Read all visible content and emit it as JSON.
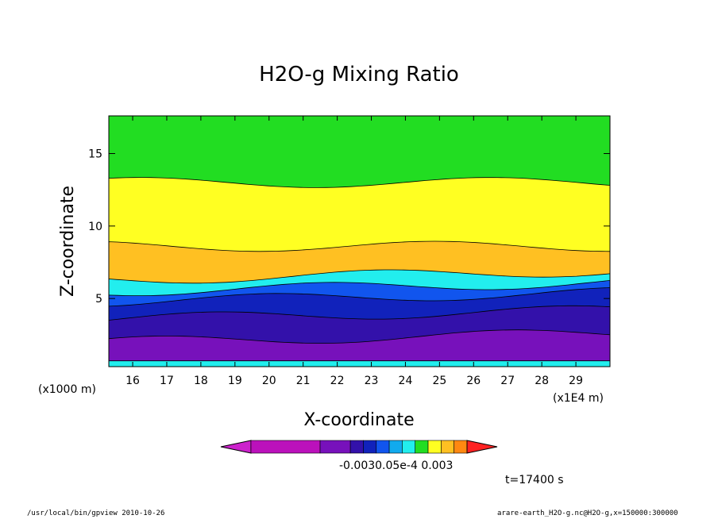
{
  "chart_data": {
    "type": "heatmap",
    "title": "H2O-g Mixing Ratio",
    "xlabel": "X-coordinate",
    "ylabel": "Z-coordinate",
    "x_unit_left": "(x1000 m)",
    "x_unit_right": "(x1E4 m)",
    "x_ticks": [
      "16",
      "17",
      "18",
      "19",
      "20",
      "21",
      "22",
      "23",
      "24",
      "25",
      "26",
      "27",
      "28",
      "29"
    ],
    "y_ticks": [
      "5",
      "10",
      "15"
    ],
    "xlim": [
      15.3,
      30.0
    ],
    "ylim": [
      0.3,
      17.6
    ],
    "layers": [
      {
        "name": "green-top",
        "color": "#22dd22",
        "z_top": 17.6
      },
      {
        "name": "yellow",
        "color": "#ffff22",
        "z_top": 13.0
      },
      {
        "name": "orange",
        "color": "#ffc022",
        "z_top": 8.6
      },
      {
        "name": "cyan",
        "color": "#22eeee",
        "z_top": 6.3
      },
      {
        "name": "blue",
        "color": "#1155ee",
        "z_top": 5.5
      },
      {
        "name": "navy",
        "color": "#1122bb",
        "z_top": 4.8
      },
      {
        "name": "indigo",
        "color": "#3311aa",
        "z_top": 3.6
      },
      {
        "name": "purple",
        "color": "#7711bb",
        "z_top": 2.0
      },
      {
        "name": "cyan-bottom",
        "color": "#22eeee",
        "z_top": 0.7
      }
    ],
    "colorbar": {
      "colors": [
        "#cc22cc",
        "#bb11bb",
        "#7711bb",
        "#3311aa",
        "#1122bb",
        "#1155ee",
        "#11aaee",
        "#22eeee",
        "#22dd22",
        "#ffff22",
        "#ffc022",
        "#ff8811",
        "#ff2222"
      ],
      "labels": [
        "-0.003",
        "0.05e-4",
        "0.003"
      ],
      "label_text": "-0.0030.05e-4  0.003"
    },
    "time_label": "t=17400 s"
  },
  "footer": {
    "left": "/usr/local/bin/gpview  2010-10-26",
    "right": "arare-earth_H2O-g.nc@H2O-g,x=150000:300000"
  }
}
